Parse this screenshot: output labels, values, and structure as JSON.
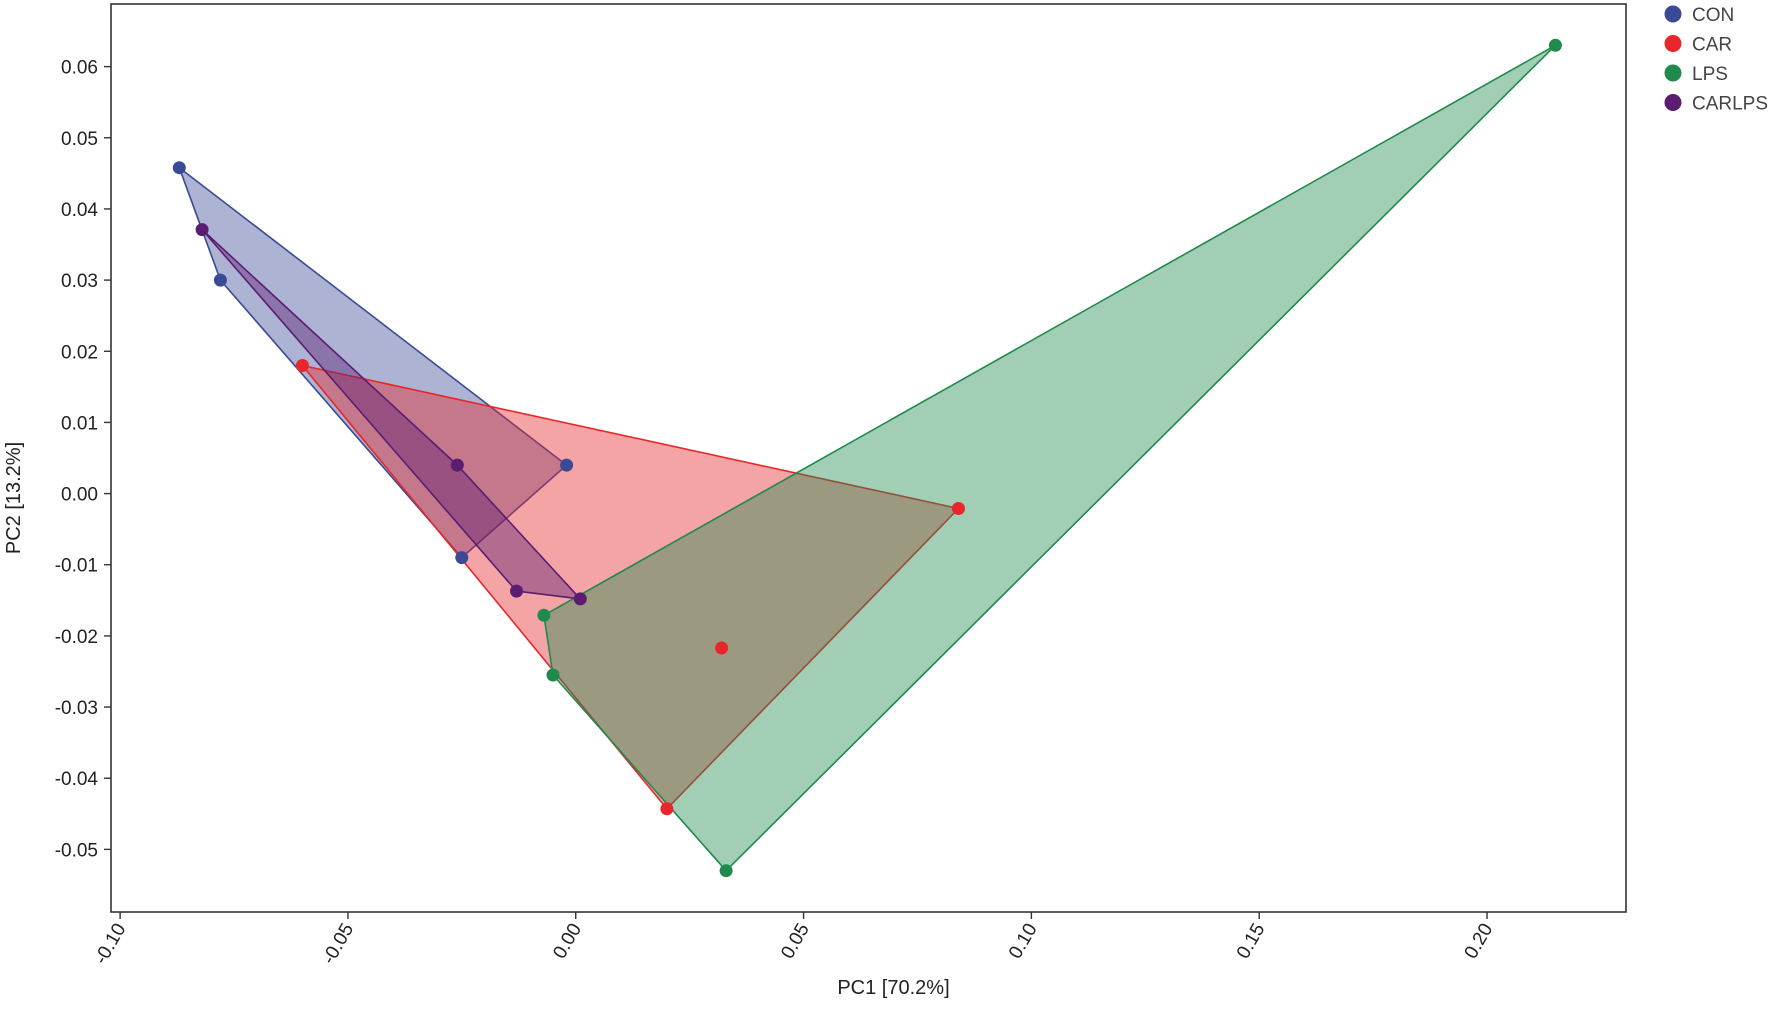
{
  "chart_data": {
    "type": "scatter",
    "title": "",
    "xlabel": "PC1 [70.2%]",
    "ylabel": "PC2 [13.2%]",
    "xlim": [
      -0.102,
      0.2305
    ],
    "ylim": [
      -0.0588,
      0.0688
    ],
    "x_ticks": [
      "-0.10",
      "-0.05",
      "0.00",
      "0.05",
      "0.10",
      "0.15",
      "0.20"
    ],
    "x_tick_values": [
      -0.1,
      -0.05,
      0.0,
      0.05,
      0.1,
      0.15,
      0.2
    ],
    "y_ticks": [
      "0.06",
      "0.05",
      "0.04",
      "0.03",
      "0.02",
      "0.01",
      "0.00",
      "-0.01",
      "-0.02",
      "-0.03",
      "-0.04",
      "-0.05"
    ],
    "y_tick_values": [
      0.06,
      0.05,
      0.04,
      0.03,
      0.02,
      0.01,
      0.0,
      -0.01,
      -0.02,
      -0.03,
      -0.04,
      -0.05
    ],
    "grid": false,
    "legend_position": "top-right, outside plot area",
    "series": [
      {
        "name": "CON",
        "color": "#3b4a96",
        "points": [
          [
            -0.087,
            0.0458
          ],
          [
            -0.078,
            0.03
          ],
          [
            -0.002,
            0.004
          ],
          [
            -0.025,
            -0.009
          ]
        ]
      },
      {
        "name": "CAR",
        "color": "#e8262b",
        "points": [
          [
            -0.06,
            0.018
          ],
          [
            0.084,
            -0.0021
          ],
          [
            0.032,
            -0.0217
          ],
          [
            0.02,
            -0.0443
          ]
        ]
      },
      {
        "name": "LPS",
        "color": "#1f8a4c",
        "points": [
          [
            0.215,
            0.063
          ],
          [
            -0.007,
            -0.0171
          ],
          [
            -0.005,
            -0.0255
          ],
          [
            0.033,
            -0.053
          ]
        ]
      },
      {
        "name": "CARLPS",
        "color": "#5a1d72",
        "points": [
          [
            -0.082,
            0.0371
          ],
          [
            -0.026,
            0.004
          ],
          [
            -0.013,
            -0.0137
          ],
          [
            0.001,
            -0.0148
          ]
        ]
      }
    ]
  }
}
